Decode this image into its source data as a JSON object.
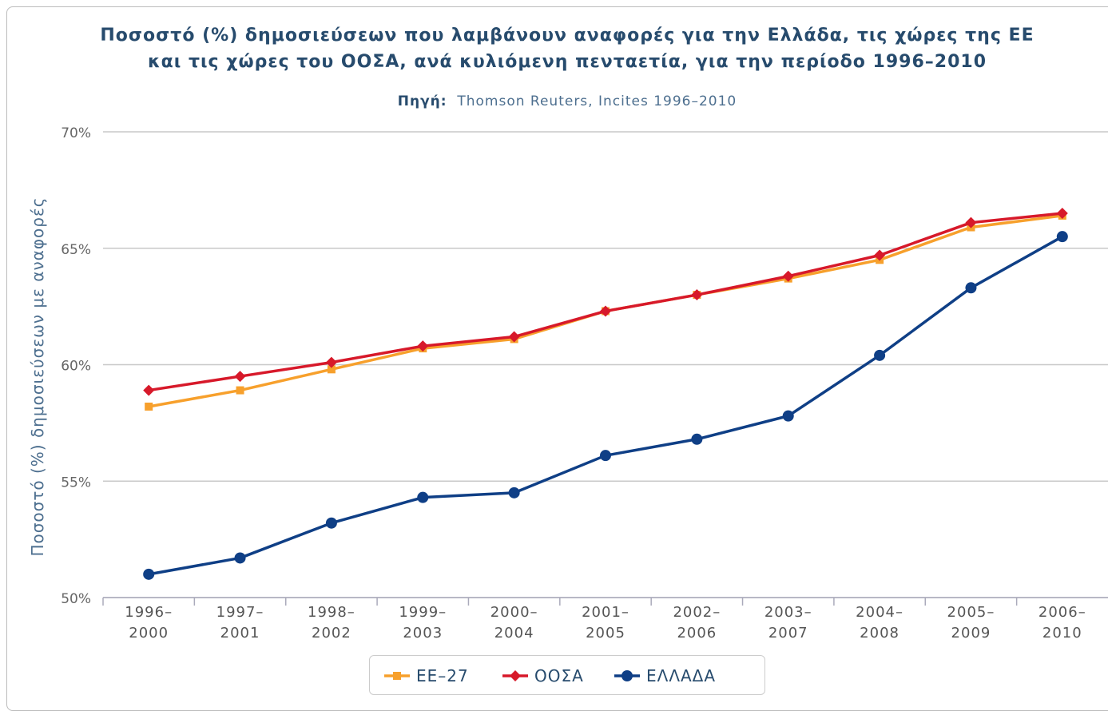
{
  "chart_data": {
    "type": "line",
    "title": [
      "Ποσοστό (%) δημοσιεύσεων που λαμβάνουν αναφορές για την Ελλάδα, τις χώρες της ΕΕ",
      "και τις χώρες του ΟΟΣΑ, ανά κυλιόμενη πενταετία, για την περίοδο 1996–2010"
    ],
    "source_label": "Πηγή:",
    "subtitle": "Thomson Reuters, Incites 1996–2010",
    "y_label": "Ποσοστό (%) δημοσιεύσεων με αναφορές",
    "categories": [
      "1996–2000",
      "1997–2001",
      "1998–2002",
      "1999–2003",
      "2000–2004",
      "2001–2005",
      "2002–2006",
      "2003–2007",
      "2004–2008",
      "2005–2009",
      "2006–2010"
    ],
    "series": [
      {
        "name": "ΕΕ–27",
        "color": "#f7a02c",
        "marker": "square",
        "values": [
          58.2,
          58.9,
          59.8,
          60.7,
          61.1,
          62.3,
          63.0,
          63.7,
          64.5,
          65.9,
          66.4
        ]
      },
      {
        "name": "ΟΟΣΑ",
        "color": "#d7192a",
        "marker": "diamond",
        "values": [
          58.9,
          59.5,
          60.1,
          60.8,
          61.2,
          62.3,
          63.0,
          63.8,
          64.7,
          66.1,
          66.5
        ]
      },
      {
        "name": "ΕΛΛΑΔΑ",
        "color": "#0f3f86",
        "marker": "circle",
        "values": [
          51.0,
          51.7,
          53.2,
          54.3,
          54.5,
          56.1,
          56.8,
          57.8,
          60.4,
          63.3,
          65.5
        ]
      }
    ],
    "ylim": [
      50,
      70
    ],
    "yticks": [
      {
        "value": 50,
        "label": "50%"
      },
      {
        "value": 55,
        "label": "55%"
      },
      {
        "value": 60,
        "label": "60%"
      },
      {
        "value": 65,
        "label": "65%"
      },
      {
        "value": 70,
        "label": "70%"
      }
    ],
    "grid": true,
    "legend": "bottom"
  }
}
